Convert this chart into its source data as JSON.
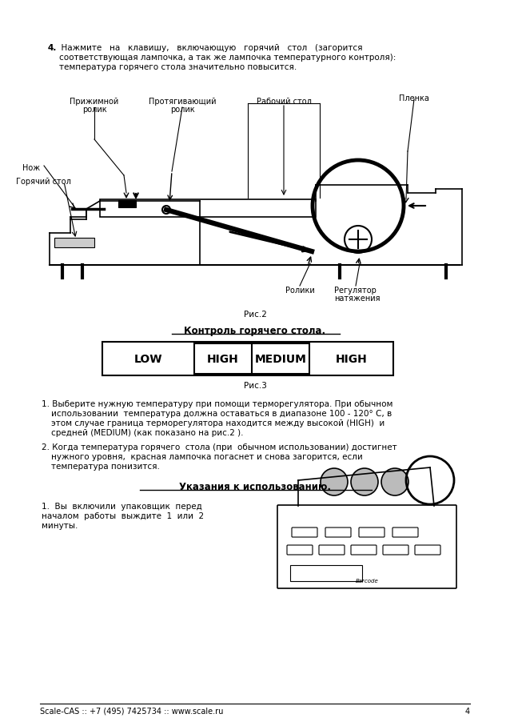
{
  "bg_color": "#ffffff",
  "fs_body": 7.5,
  "fs_lbl": 7.0,
  "para4_1": "4.  Нажмите   на   клавишу,   включающую   горячий   стол   (загорится",
  "para4_2": "соответствующая лампочка, а так же лампочка температурного контроля):",
  "para4_3": "температура горячего стола значительно повысится.",
  "lbl_prizhimnoy1": "Прижимной",
  "lbl_prizhimnoy2": "ролик",
  "lbl_protyag1": "Протягивающий",
  "lbl_protyag2": "ролик",
  "lbl_rabochiy": "Рабочий стол",
  "lbl_plenka": "Пленка",
  "lbl_nozh": "Нож",
  "lbl_goryachiy": "Горячий стол",
  "lbl_roliki": "Ролики",
  "lbl_reg1": "Регулятор",
  "lbl_reg2": "натяжения",
  "ris2": "Рис.2",
  "control_title": "Контроль горячего стола.",
  "tbl_labels": [
    "LOW",
    "HIGH",
    "MEDIUM",
    "HIGH"
  ],
  "ris3": "Рис.3",
  "item1_l1": "1. Выберите нужную температуру при помощи терморегулятора. При обычном",
  "item1_l2": "использовании  температура должна оставаться в диапазоне 100 - 120° C, в",
  "item1_l3": "этом случае граница терморегулятора находится между высокой (HIGH)  и",
  "item1_l4": "средней (MEDIUM) (как показано на рис.2 ).",
  "item2_l1": "2. Когда температура горячего  стола (при  обычном использовании) достигнет",
  "item2_l2": "нужного уровня,  красная лампочка погаснет и снова загорится, если",
  "item2_l3": "температура понизится.",
  "usage_title": "Указания к использованию.",
  "usage_l1": "1.  Вы  включили  упаковщик  перед",
  "usage_l2": "началом  работы  выждите  1  или  2",
  "usage_l3": "минуты.",
  "footer": "Scale-CAS :: +7 (495) 7425734 :: www.scale.ru",
  "footer_page": "4"
}
